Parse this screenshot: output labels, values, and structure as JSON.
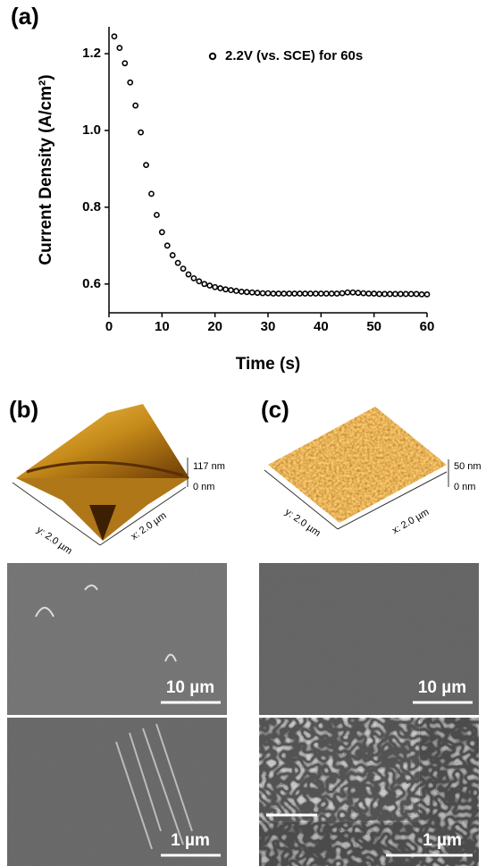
{
  "chart_data": {
    "type": "scatter",
    "panel_label": "(a)",
    "xlabel": "Time (s)",
    "ylabel": "Current Density (A/cm²)",
    "x": [
      1,
      2,
      3,
      4,
      5,
      6,
      7,
      8,
      9,
      10,
      11,
      12,
      13,
      14,
      15,
      16,
      17,
      18,
      19,
      20,
      21,
      22,
      23,
      24,
      25,
      26,
      27,
      28,
      29,
      30,
      31,
      32,
      33,
      34,
      35,
      36,
      37,
      38,
      39,
      40,
      41,
      42,
      43,
      44,
      45,
      46,
      47,
      48,
      49,
      50,
      51,
      52,
      53,
      54,
      55,
      56,
      57,
      58,
      59,
      60
    ],
    "series": [
      {
        "name": "2.2V (vs. SCE) for 60s",
        "color": "#000000",
        "values": [
          1.245,
          1.215,
          1.175,
          1.125,
          1.065,
          0.995,
          0.91,
          0.835,
          0.78,
          0.735,
          0.7,
          0.675,
          0.655,
          0.64,
          0.625,
          0.615,
          0.607,
          0.6,
          0.596,
          0.592,
          0.589,
          0.586,
          0.584,
          0.582,
          0.58,
          0.579,
          0.578,
          0.577,
          0.576,
          0.576,
          0.575,
          0.575,
          0.575,
          0.575,
          0.575,
          0.575,
          0.575,
          0.575,
          0.575,
          0.575,
          0.575,
          0.575,
          0.575,
          0.576,
          0.578,
          0.578,
          0.577,
          0.576,
          0.575,
          0.575,
          0.574,
          0.574,
          0.574,
          0.574,
          0.574,
          0.574,
          0.574,
          0.574,
          0.573,
          0.573
        ]
      }
    ],
    "xlim": [
      0,
      60
    ],
    "ylim": [
      0.525,
      1.27
    ],
    "xticks": [
      0,
      10,
      20,
      30,
      40,
      50,
      60
    ],
    "yticks": [
      0.6,
      0.8,
      {
        "value": 1,
        "label": "1.0"
      },
      1.2
    ],
    "legend": "upper right"
  },
  "panels": {
    "b": {
      "label": "(b)",
      "height_max": "117 nm",
      "height_min": "0 nm",
      "y_axis": "y: 2.0 µm",
      "x_axis": "x: 2.0 µm",
      "scale_top": "10 µm",
      "scale_bottom": "1 µm"
    },
    "c": {
      "label": "(c)",
      "height_max": "50 nm",
      "height_min": "0 nm",
      "y_axis": "y: 2.0 µm",
      "x_axis": "x: 2.0 µm",
      "scale_top": "10 µm",
      "scale_bottom": "1 µm"
    }
  }
}
